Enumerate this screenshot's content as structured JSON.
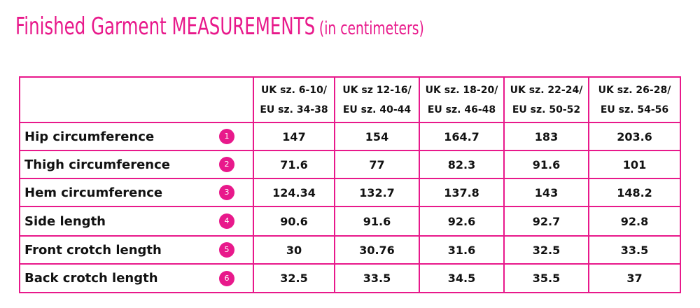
{
  "header": {
    "title": "Finished Garment MEASUREMENTS",
    "subtitle": "(in centimeters)"
  },
  "table": {
    "columns": [
      [
        "UK sz. 6-10/",
        "EU sz. 34-38"
      ],
      [
        "UK sz 12-16/",
        "EU sz. 40-44"
      ],
      [
        "UK sz. 18-20/",
        "EU sz. 46-48"
      ],
      [
        "UK sz. 22-24/",
        "EU sz. 50-52"
      ],
      [
        "UK sz. 26-28/",
        "EU sz. 54-56"
      ]
    ],
    "rows": [
      {
        "label": "Hip circumference",
        "badge": "1",
        "values": [
          "147",
          "154",
          "164.7",
          "183",
          "203.6"
        ]
      },
      {
        "label": "Thigh circumference",
        "badge": "2",
        "values": [
          "71.6",
          "77",
          "82.3",
          "91.6",
          "101"
        ]
      },
      {
        "label": "Hem circumference",
        "badge": "3",
        "values": [
          "124.34",
          "132.7",
          "137.8",
          "143",
          "148.2"
        ]
      },
      {
        "label": "Side length",
        "badge": "4",
        "values": [
          "90.6",
          "91.6",
          "92.6",
          "92.7",
          "92.8"
        ]
      },
      {
        "label": "Front crotch length",
        "badge": "5",
        "values": [
          "30",
          "30.76",
          "31.6",
          "32.5",
          "33.5"
        ]
      },
      {
        "label": "Back crotch length",
        "badge": "6",
        "values": [
          "32.5",
          "33.5",
          "34.5",
          "35.5",
          "37"
        ]
      }
    ]
  }
}
